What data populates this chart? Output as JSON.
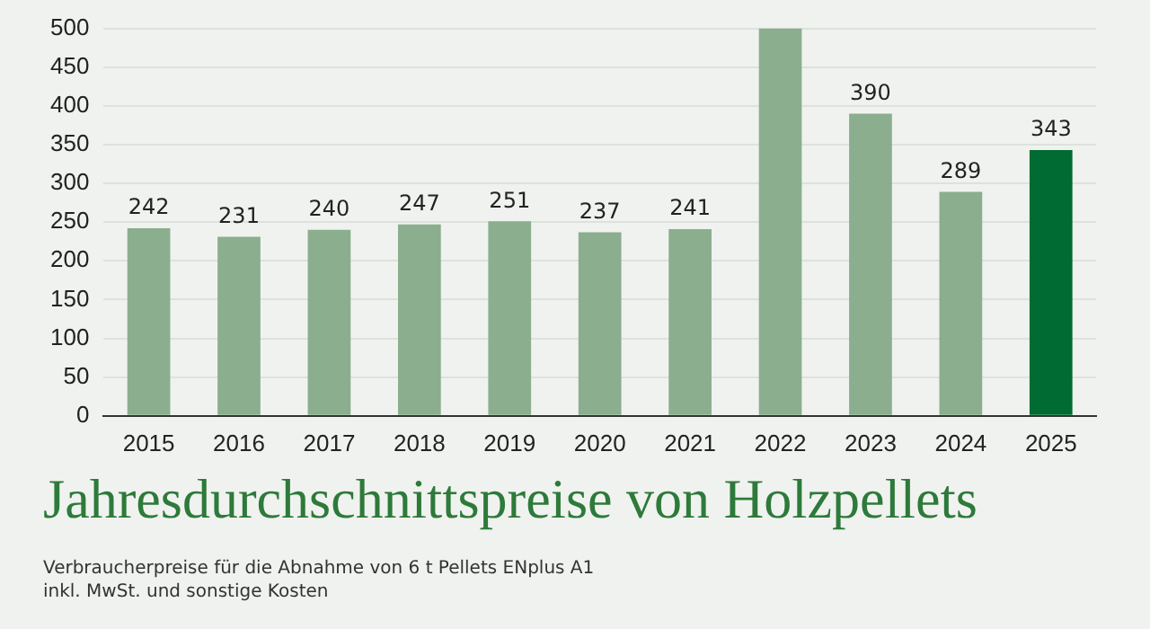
{
  "chart_data": {
    "type": "bar",
    "title": "Jahresdurchschnittspreise von Holzpellets",
    "categories": [
      "2015",
      "2016",
      "2017",
      "2018",
      "2019",
      "2020",
      "2021",
      "2022",
      "2023",
      "2024",
      "2025"
    ],
    "values": [
      242,
      231,
      240,
      247,
      251,
      237,
      241,
      500,
      390,
      289,
      343
    ],
    "colors": [
      "#8aae8e",
      "#8aae8e",
      "#8aae8e",
      "#8aae8e",
      "#8aae8e",
      "#8aae8e",
      "#8aae8e",
      "#8aae8e",
      "#8aae8e",
      "#8aae8e",
      "#006b32"
    ],
    "value_labels": [
      "242",
      "231",
      "240",
      "247",
      "251",
      "237",
      "241",
      null,
      "390",
      "289",
      "343"
    ],
    "ylim": [
      0,
      500
    ],
    "yticks": [
      0,
      50,
      100,
      150,
      200,
      250,
      300,
      350,
      400,
      450,
      500
    ],
    "grid": "y",
    "annotations": [
      "Verbraucherpreise für die Abnahme von 6 t Pellets ENplus A1",
      "inkl. MwSt. und sonstige Kosten"
    ]
  }
}
